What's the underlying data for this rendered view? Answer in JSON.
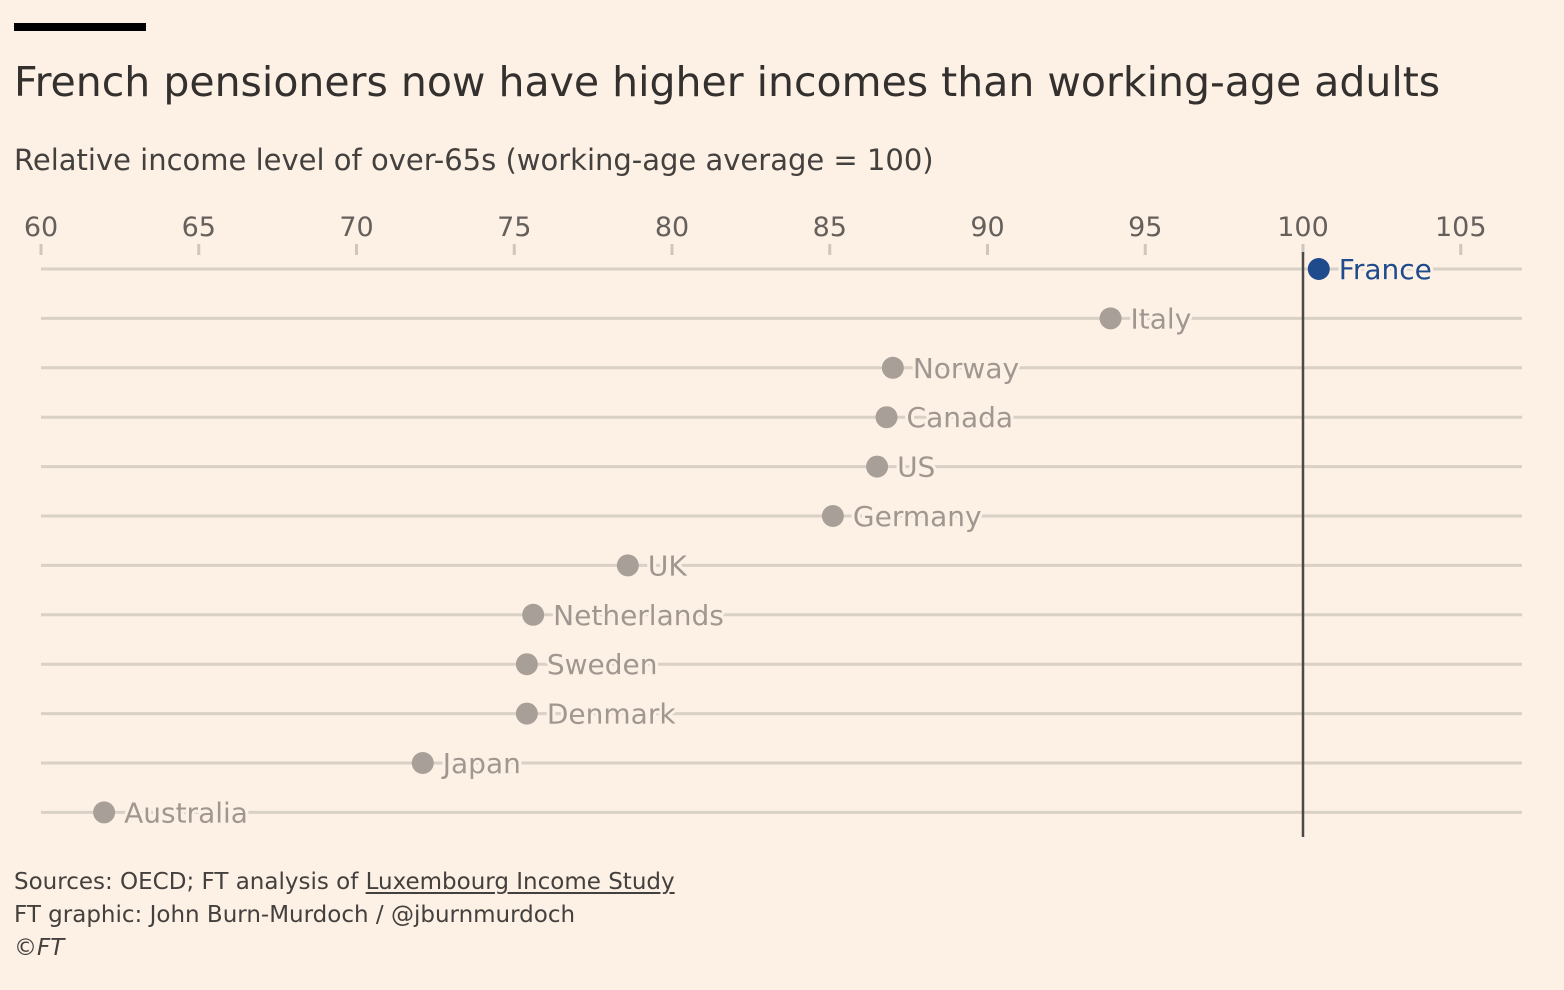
{
  "title": "French pensioners now have higher incomes than working-age adults",
  "subtitle": "Relative income level of over-65s (working-age average = 100)",
  "footer": {
    "sources_prefix": "Sources: OECD; FT analysis of ",
    "sources_link": "Luxembourg Income Study",
    "credit": "FT graphic: John Burn-Murdoch / @jburnmurdoch",
    "copyright": "©FT"
  },
  "colors": {
    "background": "#fdf1e6",
    "highlight": "#1f4a8c",
    "muted_dot": "#a8a098",
    "muted_label": "#a09890",
    "row_line": "#d9d0c6",
    "reference_line": "#4d4946",
    "tick_label": "#66605c"
  },
  "chart_data": {
    "type": "dot",
    "title": "French pensioners now have higher incomes than working-age adults",
    "xlabel": "Relative income level of over-65s (working-age average = 100)",
    "ylabel": "",
    "xlim": [
      60,
      107
    ],
    "xticks": [
      60,
      65,
      70,
      75,
      80,
      85,
      90,
      95,
      100,
      105
    ],
    "reference_line": 100,
    "highlight": "France",
    "categories": [
      "France",
      "Italy",
      "Norway",
      "Canada",
      "US",
      "Germany",
      "UK",
      "Netherlands",
      "Sweden",
      "Denmark",
      "Japan",
      "Australia"
    ],
    "values": [
      100.5,
      93.9,
      87.0,
      86.8,
      86.5,
      85.1,
      78.6,
      75.6,
      75.4,
      75.4,
      72.1,
      62.0
    ]
  }
}
